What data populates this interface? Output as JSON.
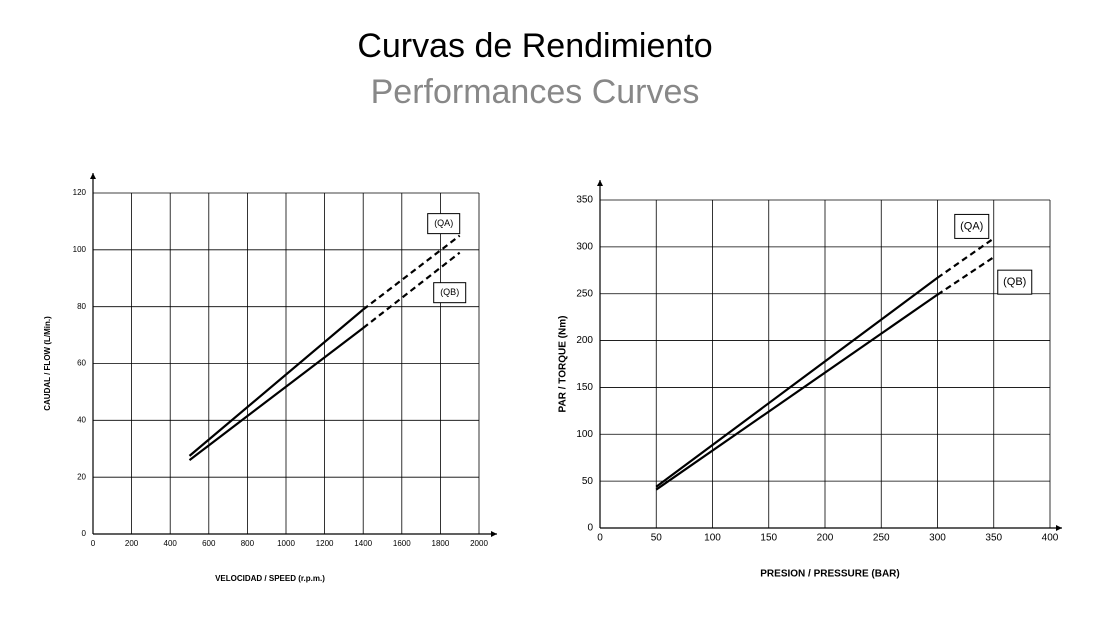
{
  "header": {
    "title": "Curvas de Rendimiento",
    "subtitle": "Performances Curves"
  },
  "chart_data": [
    {
      "type": "line",
      "xlabel": "VELOCIDAD / SPEED (r.p.m.)",
      "ylabel": "CAUDAL / FLOW (L/Min.)",
      "xlim": [
        0,
        2000
      ],
      "xticks": [
        0,
        200,
        400,
        600,
        800,
        1000,
        1200,
        1400,
        1600,
        1800,
        2000
      ],
      "ylim": [
        0,
        120
      ],
      "yticks": [
        0,
        20,
        40,
        60,
        80,
        100,
        120
      ],
      "grid": true,
      "series": [
        {
          "name": "(QA)",
          "color": "#000000",
          "x": [
            500,
            1400,
            1900
          ],
          "values": [
            27.5,
            79,
            105
          ],
          "segment_styles": [
            "solid",
            "dashed"
          ]
        },
        {
          "name": "(QB)",
          "color": "#000000",
          "x": [
            500,
            1400,
            1900
          ],
          "values": [
            26,
            72.5,
            99
          ],
          "segment_styles": [
            "solid",
            "dashed"
          ]
        }
      ]
    },
    {
      "type": "line",
      "xlabel": "PRESION / PRESSURE (BAR)",
      "ylabel": "PAR / TORQUE (Nm)",
      "xlim": [
        0,
        400
      ],
      "xticks": [
        0,
        50,
        100,
        150,
        200,
        250,
        300,
        350,
        400
      ],
      "ylim": [
        0,
        350
      ],
      "yticks": [
        0,
        50,
        100,
        150,
        200,
        250,
        300,
        350
      ],
      "grid": true,
      "series": [
        {
          "name": "(QA)",
          "color": "#000000",
          "x": [
            50,
            300,
            350
          ],
          "values": [
            44,
            267,
            309
          ],
          "segment_styles": [
            "solid",
            "dashed"
          ]
        },
        {
          "name": "(QB)",
          "color": "#000000",
          "x": [
            50,
            300,
            350
          ],
          "values": [
            41,
            249,
            289
          ],
          "segment_styles": [
            "solid",
            "dashed"
          ]
        }
      ]
    }
  ]
}
